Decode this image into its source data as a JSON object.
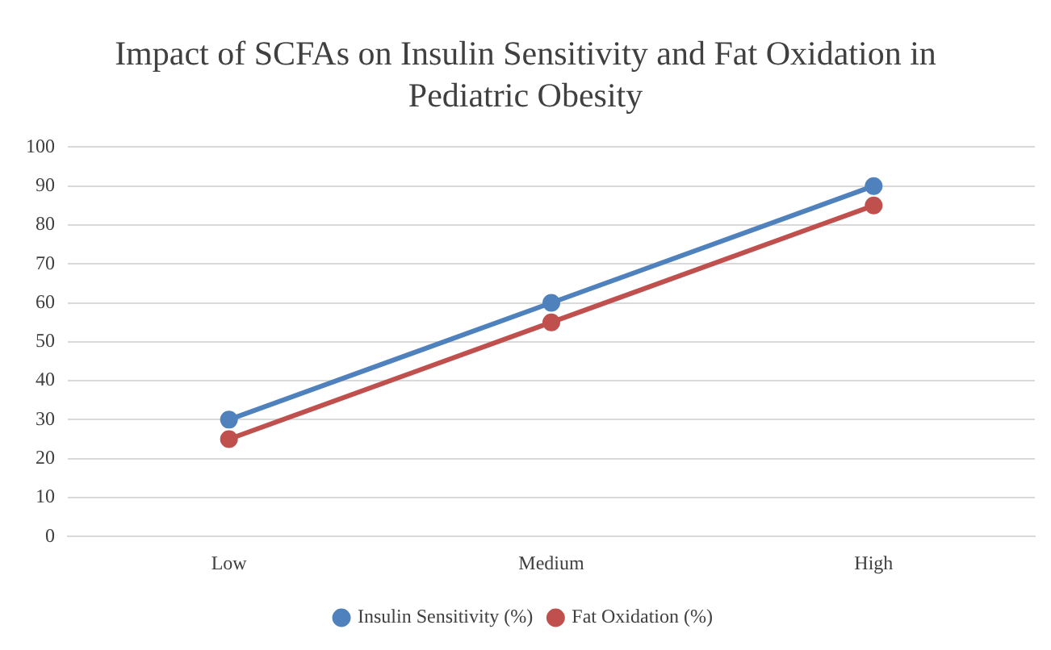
{
  "chart_data": {
    "type": "line",
    "title": "Impact of SCFAs on Insulin Sensitivity and Fat Oxidation in Pediatric Obesity",
    "categories": [
      "Low",
      "Medium",
      "High"
    ],
    "series": [
      {
        "name": "Insulin Sensitivity (%)",
        "color": "#4f81bd",
        "values": [
          30,
          60,
          90
        ]
      },
      {
        "name": "Fat Oxidation (%)",
        "color": "#c0504d",
        "values": [
          25,
          55,
          85
        ]
      }
    ],
    "ylim": [
      0,
      100
    ],
    "yticks": [
      0,
      10,
      20,
      30,
      40,
      50,
      60,
      70,
      80,
      90,
      100
    ],
    "grid": "y",
    "legend": "bottom",
    "marker": "circle",
    "line_style": "solid"
  }
}
